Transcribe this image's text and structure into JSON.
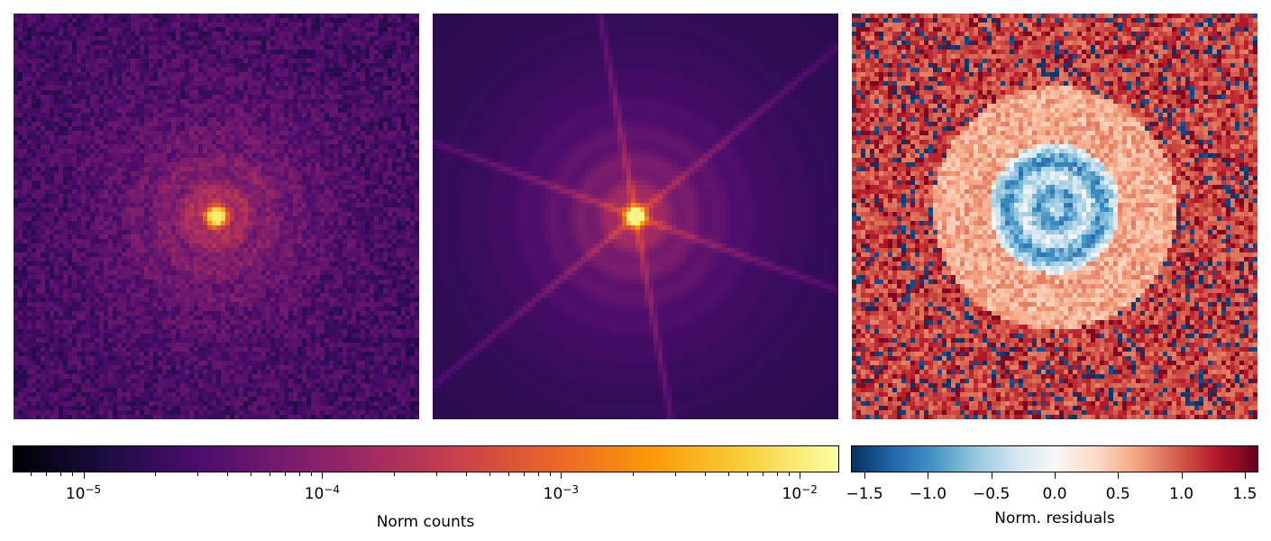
{
  "chart_data": [
    {
      "type": "heatmap",
      "panel": "observed image",
      "colormap": "inferno",
      "scale": "log",
      "colorbar": "counts",
      "features": [
        "bright compact core",
        "diffuse halo",
        "noisy background"
      ]
    },
    {
      "type": "heatmap",
      "panel": "model image",
      "colormap": "inferno",
      "scale": "log",
      "colorbar": "counts",
      "features": [
        "bright compact core",
        "diffuse halo",
        "six diffraction spikes",
        "smooth background"
      ]
    },
    {
      "type": "heatmap",
      "panel": "normalized residual map",
      "colormap": "RdBu_r",
      "colorbar": "residuals",
      "features": [
        "negative residuals at center",
        "positive residual ring",
        "noisy outskirts"
      ]
    }
  ],
  "colorbars": {
    "counts": {
      "label": "Norm counts",
      "scale": "log",
      "range": [
        5.1e-06,
        0.0145
      ],
      "colormap": "inferno",
      "tick_values": [
        1e-05,
        0.0001,
        0.001,
        0.01
      ],
      "tick_labels": [
        {
          "base": "10",
          "exp": "−5"
        },
        {
          "base": "10",
          "exp": "−4"
        },
        {
          "base": "10",
          "exp": "−3"
        },
        {
          "base": "10",
          "exp": "−2"
        }
      ]
    },
    "residuals": {
      "label": "Norm. residuals",
      "scale": "linear",
      "range": [
        -1.6,
        1.6
      ],
      "colormap": "RdBu_r",
      "tick_values": [
        -1.5,
        -1.0,
        -0.5,
        0.0,
        0.5,
        1.0,
        1.5
      ],
      "tick_labels": [
        "−1.5",
        "−1.0",
        "−0.5",
        "0.0",
        "0.5",
        "1.0",
        "1.5"
      ]
    }
  },
  "colors": {
    "inferno": [
      "#000004",
      "#1b0c41",
      "#4a0c6b",
      "#781c6d",
      "#a52c60",
      "#cf4446",
      "#ed6925",
      "#fb9b06",
      "#f7d13d",
      "#fcffa4"
    ],
    "rdbu_r": [
      "#053061",
      "#2166ac",
      "#4393c3",
      "#92c5de",
      "#d1e5f0",
      "#f7f7f7",
      "#fddbc7",
      "#f4a582",
      "#d6604d",
      "#b2182b",
      "#67001f"
    ]
  }
}
